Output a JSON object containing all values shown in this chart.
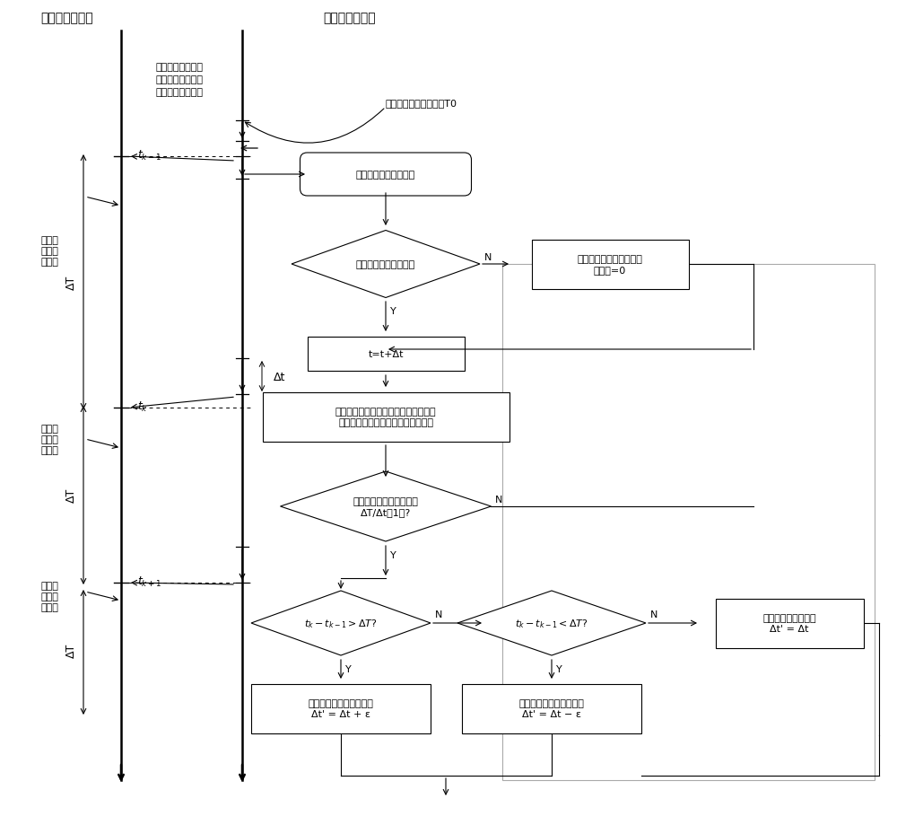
{
  "bg": "#ffffff",
  "title_central": "中央控制器时钟",
  "title_joint": "关节控制器时钟",
  "note": "利用关节控制器时\n钟对发送期望位置\n时刻间隔进行计时",
  "delay_label": "轨迹规划启动延时时间T0",
  "send_text": "向关节\n发送期\n望位置",
  "pill_text": "关节轨迹规划启动时刻",
  "d1_text": "关节轨迹规划是否启动",
  "bno1_text": "输出关节当前位置、速度\n加速度=0",
  "b1_text": "t=t+Δt",
  "b2_text": "调用加速度最优的轨迹规划算法输出关\n节期望位置、期望速度、期望加速度",
  "d2_text": "关节轨迹规划是否调用了\nΔT/Δt－1次?",
  "d3_text": "$t_k - t_{k-1} > \\Delta T$?",
  "d4_text": "$t_k - t_{k-1} < \\Delta T$?",
  "bc1_text": "关节控制器的定时器修正\nΔt' = Δt + ε",
  "bc2_text": "关节控制器的定时器修正\nΔt' = Δt − ε",
  "bno2_text": "关节控制器的定时器\nΔt' = Δt",
  "delta_T": "ΔT",
  "delta_t": "Δt"
}
